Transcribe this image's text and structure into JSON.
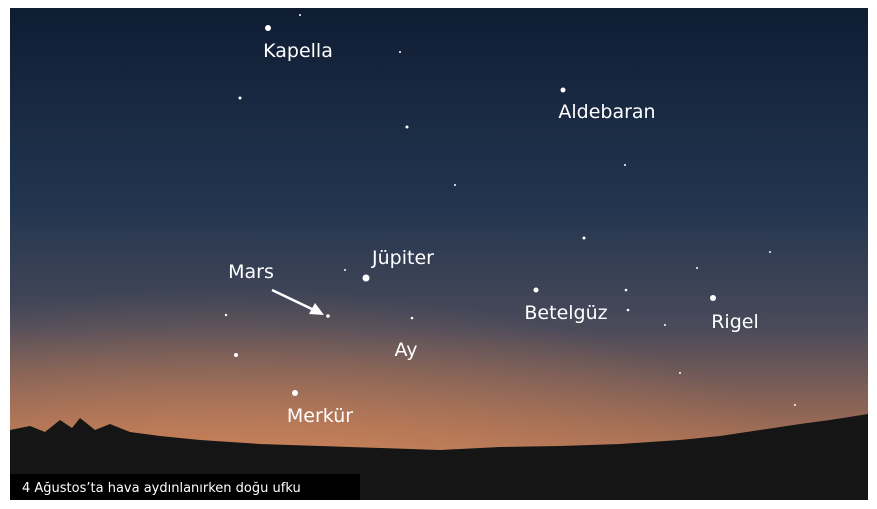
{
  "labels": {
    "kapella": "Kapella",
    "aldebaran": "Aldebaran",
    "jupiter": "Jüpiter",
    "mars": "Mars",
    "betelguz": "Betelgüz",
    "rigel": "Rigel",
    "ay": "Ay",
    "merkur": "Merkür"
  },
  "caption": "4 Ağustos’ta hava aydınlanırken doğu ufku"
}
